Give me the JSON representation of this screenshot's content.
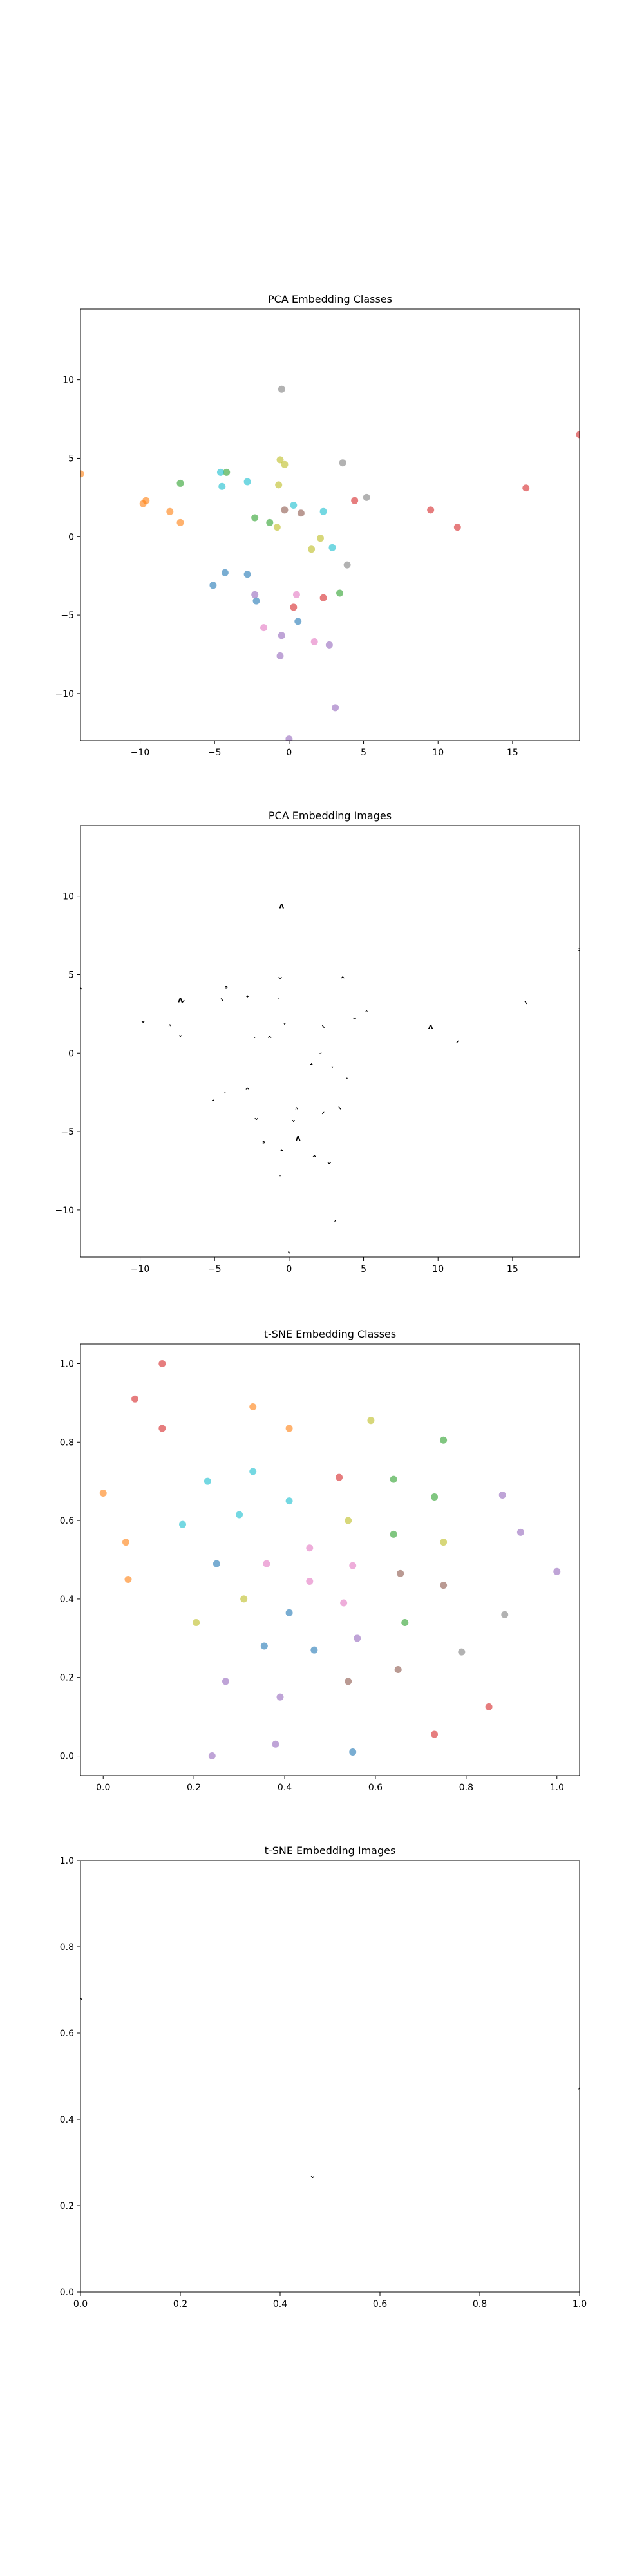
{
  "chart_data": [
    {
      "type": "scatter",
      "title": "PCA Embedding Classes",
      "xlabel": "",
      "ylabel": "",
      "xlim": [
        -14,
        19.5
      ],
      "ylim": [
        -13,
        14.5
      ],
      "xticks": [
        -10,
        -5,
        0,
        5,
        10,
        15
      ],
      "yticks": [
        -10,
        -5,
        0,
        5,
        10
      ],
      "grid": false,
      "points": [
        {
          "x": -14.0,
          "y": 4.0,
          "color": "#ff7f0e"
        },
        {
          "x": -9.8,
          "y": 2.1,
          "color": "#ff7f0e"
        },
        {
          "x": -9.6,
          "y": 2.3,
          "color": "#ff7f0e"
        },
        {
          "x": -8.0,
          "y": 1.6,
          "color": "#ff7f0e"
        },
        {
          "x": -7.3,
          "y": 0.9,
          "color": "#ff7f0e"
        },
        {
          "x": -7.3,
          "y": 3.4,
          "color": "#2ca02c"
        },
        {
          "x": -4.2,
          "y": 4.1,
          "color": "#2ca02c"
        },
        {
          "x": -2.3,
          "y": 1.2,
          "color": "#2ca02c"
        },
        {
          "x": -1.3,
          "y": 0.9,
          "color": "#2ca02c"
        },
        {
          "x": 3.4,
          "y": -3.6,
          "color": "#2ca02c"
        },
        {
          "x": -4.6,
          "y": 4.1,
          "color": "#17becf"
        },
        {
          "x": -4.5,
          "y": 3.2,
          "color": "#17becf"
        },
        {
          "x": -2.8,
          "y": 3.5,
          "color": "#17becf"
        },
        {
          "x": 0.3,
          "y": 2.0,
          "color": "#17becf"
        },
        {
          "x": 2.3,
          "y": 1.6,
          "color": "#17becf"
        },
        {
          "x": 2.9,
          "y": -0.7,
          "color": "#17becf"
        },
        {
          "x": -0.6,
          "y": 4.9,
          "color": "#bcbd22"
        },
        {
          "x": -0.3,
          "y": 4.6,
          "color": "#bcbd22"
        },
        {
          "x": -0.7,
          "y": 3.3,
          "color": "#bcbd22"
        },
        {
          "x": -0.8,
          "y": 0.6,
          "color": "#bcbd22"
        },
        {
          "x": 1.5,
          "y": -0.8,
          "color": "#bcbd22"
        },
        {
          "x": 2.1,
          "y": -0.1,
          "color": "#bcbd22"
        },
        {
          "x": -0.5,
          "y": 9.4,
          "color": "#7f7f7f"
        },
        {
          "x": 3.6,
          "y": 4.7,
          "color": "#7f7f7f"
        },
        {
          "x": 5.2,
          "y": 2.5,
          "color": "#7f7f7f"
        },
        {
          "x": 3.9,
          "y": -1.8,
          "color": "#7f7f7f"
        },
        {
          "x": -0.3,
          "y": 1.7,
          "color": "#8c564b"
        },
        {
          "x": 0.8,
          "y": 1.5,
          "color": "#8c564b"
        },
        {
          "x": 4.4,
          "y": 2.3,
          "color": "#d62728"
        },
        {
          "x": 9.5,
          "y": 1.7,
          "color": "#d62728"
        },
        {
          "x": 11.3,
          "y": 0.6,
          "color": "#d62728"
        },
        {
          "x": 15.9,
          "y": 3.1,
          "color": "#d62728"
        },
        {
          "x": 19.5,
          "y": 6.5,
          "color": "#d62728"
        },
        {
          "x": 0.3,
          "y": -4.5,
          "color": "#d62728"
        },
        {
          "x": 2.3,
          "y": -3.9,
          "color": "#d62728"
        },
        {
          "x": -5.1,
          "y": -3.1,
          "color": "#1f77b4"
        },
        {
          "x": -4.3,
          "y": -2.3,
          "color": "#1f77b4"
        },
        {
          "x": -2.8,
          "y": -2.4,
          "color": "#1f77b4"
        },
        {
          "x": -2.2,
          "y": -4.1,
          "color": "#1f77b4"
        },
        {
          "x": 0.6,
          "y": -5.4,
          "color": "#1f77b4"
        },
        {
          "x": 0.5,
          "y": -3.7,
          "color": "#e377c2"
        },
        {
          "x": -1.7,
          "y": -5.8,
          "color": "#e377c2"
        },
        {
          "x": 1.7,
          "y": -6.7,
          "color": "#e377c2"
        },
        {
          "x": -2.3,
          "y": -3.7,
          "color": "#9467bd"
        },
        {
          "x": -0.5,
          "y": -6.3,
          "color": "#9467bd"
        },
        {
          "x": -0.6,
          "y": -7.6,
          "color": "#9467bd"
        },
        {
          "x": 2.7,
          "y": -6.9,
          "color": "#9467bd"
        },
        {
          "x": 3.1,
          "y": -10.9,
          "color": "#9467bd"
        },
        {
          "x": 0.0,
          "y": -12.9,
          "color": "#9467bd"
        }
      ]
    },
    {
      "type": "scatter",
      "title": "PCA Embedding Images",
      "xlabel": "",
      "ylabel": "",
      "xlim": [
        -14,
        19.5
      ],
      "ylim": [
        -13,
        14.5
      ],
      "xticks": [
        -10,
        -5,
        0,
        5,
        10,
        15
      ],
      "yticks": [
        -10,
        -5,
        0,
        5,
        10
      ],
      "grid": false,
      "points": [
        {
          "x": -14.0,
          "y": 4.0
        },
        {
          "x": -9.8,
          "y": 2.1
        },
        {
          "x": -8.0,
          "y": 1.6
        },
        {
          "x": -7.3,
          "y": 0.9
        },
        {
          "x": -7.3,
          "y": 3.4
        },
        {
          "x": -7.1,
          "y": 3.2
        },
        {
          "x": -4.5,
          "y": 3.3
        },
        {
          "x": -4.2,
          "y": 4.1
        },
        {
          "x": -2.8,
          "y": 3.5
        },
        {
          "x": -2.3,
          "y": 1.2
        },
        {
          "x": -1.3,
          "y": 0.9
        },
        {
          "x": -0.6,
          "y": 4.9
        },
        {
          "x": -0.7,
          "y": 3.3
        },
        {
          "x": -0.3,
          "y": 1.7
        },
        {
          "x": -0.5,
          "y": 9.4
        },
        {
          "x": 0.0,
          "y": 14.5
        },
        {
          "x": 2.3,
          "y": 1.6
        },
        {
          "x": 2.1,
          "y": -0.1
        },
        {
          "x": 1.5,
          "y": -0.8
        },
        {
          "x": 2.9,
          "y": -0.7
        },
        {
          "x": 3.6,
          "y": 4.7
        },
        {
          "x": 4.4,
          "y": 2.3
        },
        {
          "x": 5.2,
          "y": 2.5
        },
        {
          "x": 3.9,
          "y": -1.8
        },
        {
          "x": 9.5,
          "y": 1.7
        },
        {
          "x": 11.3,
          "y": 0.6
        },
        {
          "x": 15.9,
          "y": 3.1
        },
        {
          "x": 19.5,
          "y": 6.5
        },
        {
          "x": -5.1,
          "y": -3.1
        },
        {
          "x": -4.3,
          "y": -2.3
        },
        {
          "x": -2.8,
          "y": -2.4
        },
        {
          "x": -2.2,
          "y": -4.1
        },
        {
          "x": 0.5,
          "y": -3.7
        },
        {
          "x": 0.3,
          "y": -4.5
        },
        {
          "x": 0.6,
          "y": -5.4
        },
        {
          "x": 2.3,
          "y": -3.9
        },
        {
          "x": 3.4,
          "y": -3.6
        },
        {
          "x": -1.7,
          "y": -5.8
        },
        {
          "x": -0.5,
          "y": -6.3
        },
        {
          "x": -0.6,
          "y": -7.6
        },
        {
          "x": 1.7,
          "y": -6.7
        },
        {
          "x": 2.7,
          "y": -6.9
        },
        {
          "x": 3.1,
          "y": -10.9
        },
        {
          "x": 0.0,
          "y": -12.9
        }
      ]
    },
    {
      "type": "scatter",
      "title": "t-SNE Embedding Classes",
      "xlabel": "",
      "ylabel": "",
      "xlim": [
        -0.05,
        1.05
      ],
      "ylim": [
        -0.05,
        1.05
      ],
      "xticks": [
        0.0,
        0.2,
        0.4,
        0.6,
        0.8,
        1.0
      ],
      "yticks": [
        0.0,
        0.2,
        0.4,
        0.6,
        0.8,
        1.0
      ],
      "grid": false,
      "points": [
        {
          "x": 0.13,
          "y": 1.0,
          "color": "#d62728"
        },
        {
          "x": 0.07,
          "y": 0.91,
          "color": "#d62728"
        },
        {
          "x": 0.13,
          "y": 0.835,
          "color": "#d62728"
        },
        {
          "x": 0.52,
          "y": 0.71,
          "color": "#d62728"
        },
        {
          "x": 0.85,
          "y": 0.125,
          "color": "#d62728"
        },
        {
          "x": 0.73,
          "y": 0.055,
          "color": "#d62728"
        },
        {
          "x": 0.33,
          "y": 0.89,
          "color": "#ff7f0e"
        },
        {
          "x": 0.41,
          "y": 0.835,
          "color": "#ff7f0e"
        },
        {
          "x": 0.0,
          "y": 0.67,
          "color": "#ff7f0e"
        },
        {
          "x": 0.05,
          "y": 0.545,
          "color": "#ff7f0e"
        },
        {
          "x": 0.055,
          "y": 0.45,
          "color": "#ff7f0e"
        },
        {
          "x": 0.59,
          "y": 0.855,
          "color": "#bcbd22"
        },
        {
          "x": 0.54,
          "y": 0.6,
          "color": "#bcbd22"
        },
        {
          "x": 0.75,
          "y": 0.545,
          "color": "#bcbd22"
        },
        {
          "x": 0.31,
          "y": 0.4,
          "color": "#bcbd22"
        },
        {
          "x": 0.205,
          "y": 0.34,
          "color": "#bcbd22"
        },
        {
          "x": 0.75,
          "y": 0.805,
          "color": "#2ca02c"
        },
        {
          "x": 0.64,
          "y": 0.705,
          "color": "#2ca02c"
        },
        {
          "x": 0.73,
          "y": 0.66,
          "color": "#2ca02c"
        },
        {
          "x": 0.64,
          "y": 0.565,
          "color": "#2ca02c"
        },
        {
          "x": 0.665,
          "y": 0.34,
          "color": "#2ca02c"
        },
        {
          "x": 0.33,
          "y": 0.725,
          "color": "#17becf"
        },
        {
          "x": 0.23,
          "y": 0.7,
          "color": "#17becf"
        },
        {
          "x": 0.175,
          "y": 0.59,
          "color": "#17becf"
        },
        {
          "x": 0.3,
          "y": 0.615,
          "color": "#17becf"
        },
        {
          "x": 0.41,
          "y": 0.65,
          "color": "#17becf"
        },
        {
          "x": 0.88,
          "y": 0.665,
          "color": "#9467bd"
        },
        {
          "x": 0.92,
          "y": 0.57,
          "color": "#9467bd"
        },
        {
          "x": 1.0,
          "y": 0.47,
          "color": "#9467bd"
        },
        {
          "x": 0.27,
          "y": 0.19,
          "color": "#9467bd"
        },
        {
          "x": 0.39,
          "y": 0.15,
          "color": "#9467bd"
        },
        {
          "x": 0.38,
          "y": 0.03,
          "color": "#9467bd"
        },
        {
          "x": 0.24,
          "y": 0.0,
          "color": "#9467bd"
        },
        {
          "x": 0.56,
          "y": 0.3,
          "color": "#9467bd"
        },
        {
          "x": 0.25,
          "y": 0.49,
          "color": "#1f77b4"
        },
        {
          "x": 0.41,
          "y": 0.365,
          "color": "#1f77b4"
        },
        {
          "x": 0.355,
          "y": 0.28,
          "color": "#1f77b4"
        },
        {
          "x": 0.465,
          "y": 0.27,
          "color": "#1f77b4"
        },
        {
          "x": 0.55,
          "y": 0.01,
          "color": "#1f77b4"
        },
        {
          "x": 0.36,
          "y": 0.49,
          "color": "#e377c2"
        },
        {
          "x": 0.455,
          "y": 0.53,
          "color": "#e377c2"
        },
        {
          "x": 0.455,
          "y": 0.445,
          "color": "#e377c2"
        },
        {
          "x": 0.55,
          "y": 0.485,
          "color": "#e377c2"
        },
        {
          "x": 0.53,
          "y": 0.39,
          "color": "#e377c2"
        },
        {
          "x": 0.655,
          "y": 0.465,
          "color": "#8c564b"
        },
        {
          "x": 0.75,
          "y": 0.435,
          "color": "#8c564b"
        },
        {
          "x": 0.54,
          "y": 0.19,
          "color": "#8c564b"
        },
        {
          "x": 0.65,
          "y": 0.22,
          "color": "#8c564b"
        },
        {
          "x": 0.79,
          "y": 0.265,
          "color": "#7f7f7f"
        },
        {
          "x": 0.885,
          "y": 0.36,
          "color": "#7f7f7f"
        }
      ]
    },
    {
      "type": "scatter",
      "title": "t-SNE Embedding Images",
      "xlabel": "",
      "ylabel": "",
      "xlim": [
        0.0,
        1.0
      ],
      "ylim": [
        0.0,
        1.0
      ],
      "xticks": [
        0.0,
        0.2,
        0.4,
        0.6,
        0.8,
        1.0
      ],
      "yticks": [
        0.0,
        0.2,
        0.4,
        0.6,
        0.8,
        1.0
      ],
      "grid": false,
      "points": [
        {
          "x": 0.0,
          "y": 0.675
        },
        {
          "x": 0.465,
          "y": 0.27
        },
        {
          "x": 1.0,
          "y": 0.465
        }
      ]
    }
  ]
}
